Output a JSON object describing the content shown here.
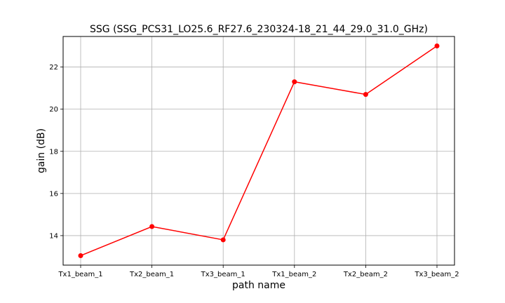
{
  "chart_data": {
    "type": "line",
    "title": "SSG (SSG_PCS31_LO25.6_RF27.6_230324-18_21_44_29.0_31.0_GHz)",
    "xlabel": "path name",
    "ylabel": "gain (dB)",
    "categories": [
      "Tx1_beam_1",
      "Tx2_beam_1",
      "Tx3_beam_1",
      "Tx1_beam_2",
      "Tx2_beam_2",
      "Tx3_beam_2"
    ],
    "values": [
      13.05,
      14.43,
      13.8,
      21.3,
      20.7,
      23.0
    ],
    "ylim": [
      12.6,
      23.45
    ],
    "yticks": [
      14,
      16,
      18,
      20,
      22
    ],
    "grid": true,
    "line_color": "#ff0000",
    "marker": "circle"
  }
}
